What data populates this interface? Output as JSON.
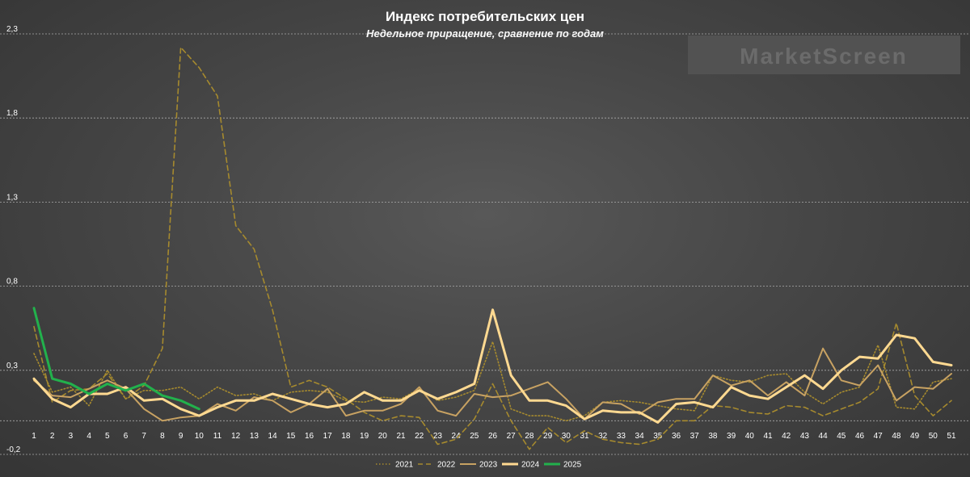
{
  "chart_data": {
    "type": "line",
    "title": "Индекс потребительских цен",
    "subtitle": "Недельное приращение, сравнение по годам",
    "xlabel": "",
    "ylabel": "",
    "ylim": [
      -0.2,
      2.3
    ],
    "yticks": [
      -0.2,
      0.3,
      0.8,
      1.3,
      1.8,
      2.3
    ],
    "ytick_labels": [
      "-0,2",
      "0,3",
      "0,8",
      "1,3",
      "1,8",
      "2,3"
    ],
    "x": [
      1,
      2,
      3,
      4,
      5,
      6,
      7,
      8,
      9,
      10,
      11,
      12,
      13,
      14,
      15,
      16,
      17,
      18,
      19,
      20,
      21,
      22,
      23,
      24,
      25,
      26,
      27,
      28,
      29,
      30,
      31,
      32,
      33,
      34,
      35,
      36,
      37,
      38,
      39,
      40,
      41,
      42,
      43,
      44,
      45,
      46,
      47,
      48,
      49,
      50,
      51
    ],
    "grid": true,
    "legend_position": "bottom",
    "series": [
      {
        "name": "2021",
        "color": "#a68a2e",
        "style": "dotted",
        "values": [
          0.4,
          0.17,
          0.2,
          0.09,
          0.3,
          0.13,
          0.18,
          0.18,
          0.2,
          0.13,
          0.2,
          0.15,
          0.16,
          0.12,
          0.17,
          0.18,
          0.17,
          0.12,
          0.11,
          0.14,
          0.13,
          0.19,
          0.12,
          0.14,
          0.18,
          0.47,
          0.07,
          0.03,
          0.03,
          0.0,
          0.03,
          0.11,
          0.12,
          0.11,
          0.09,
          0.07,
          0.06,
          0.27,
          0.24,
          0.23,
          0.27,
          0.28,
          0.17,
          0.1,
          0.17,
          0.2,
          0.45,
          0.08,
          0.07,
          0.23,
          0.25
        ]
      },
      {
        "name": "2022",
        "color": "#a68a2e",
        "style": "dashed",
        "values": [
          0.56,
          0.11,
          0.18,
          0.19,
          0.28,
          0.13,
          0.21,
          0.43,
          2.22,
          2.1,
          1.93,
          1.16,
          1.02,
          0.66,
          0.2,
          0.24,
          0.2,
          0.13,
          0.05,
          0.0,
          0.03,
          0.02,
          -0.14,
          -0.11,
          0.01,
          0.22,
          0.0,
          -0.17,
          -0.04,
          -0.13,
          -0.06,
          -0.11,
          -0.13,
          -0.14,
          -0.11,
          0.0,
          0.0,
          0.09,
          0.08,
          0.05,
          0.04,
          0.09,
          0.08,
          0.03,
          0.07,
          0.11,
          0.19,
          0.58,
          0.15,
          0.03,
          0.12
        ]
      },
      {
        "name": "2023",
        "color": "#c8a262",
        "style": "solid",
        "values": [
          0.24,
          0.15,
          0.14,
          0.19,
          0.24,
          0.19,
          0.07,
          0.0,
          0.02,
          0.03,
          0.1,
          0.06,
          0.14,
          0.12,
          0.05,
          0.1,
          0.19,
          0.03,
          0.06,
          0.06,
          0.1,
          0.2,
          0.06,
          0.03,
          0.16,
          0.14,
          0.15,
          0.19,
          0.23,
          0.13,
          0.01,
          0.11,
          0.1,
          0.04,
          0.11,
          0.13,
          0.13,
          0.27,
          0.21,
          0.24,
          0.15,
          0.23,
          0.15,
          0.43,
          0.24,
          0.21,
          0.33,
          0.12,
          0.2,
          0.19,
          0.28
        ]
      },
      {
        "name": "2024",
        "color": "#ffd991",
        "style": "solid",
        "values": [
          0.25,
          0.13,
          0.08,
          0.16,
          0.16,
          0.2,
          0.12,
          0.13,
          0.07,
          0.03,
          0.08,
          0.12,
          0.12,
          0.16,
          0.13,
          0.1,
          0.08,
          0.1,
          0.17,
          0.12,
          0.12,
          0.18,
          0.13,
          0.17,
          0.22,
          0.66,
          0.27,
          0.12,
          0.12,
          0.09,
          0.01,
          0.06,
          0.05,
          0.05,
          -0.01,
          0.1,
          0.11,
          0.08,
          0.2,
          0.15,
          0.13,
          0.2,
          0.27,
          0.19,
          0.3,
          0.38,
          0.37,
          0.51,
          0.49,
          0.35,
          0.33
        ]
      },
      {
        "name": "2025",
        "color": "#22b14c",
        "style": "solid",
        "values": [
          0.67,
          0.25,
          0.22,
          0.16,
          0.22,
          0.18,
          0.22,
          0.15,
          0.12,
          0.07,
          null,
          null,
          null,
          null,
          null,
          null,
          null,
          null,
          null,
          null,
          null,
          null,
          null,
          null,
          null,
          null,
          null,
          null,
          null,
          null,
          null,
          null,
          null,
          null,
          null,
          null,
          null,
          null,
          null,
          null,
          null,
          null,
          null,
          null,
          null,
          null,
          null,
          null,
          null,
          null,
          null
        ]
      }
    ]
  },
  "watermark": "MarketScreen"
}
